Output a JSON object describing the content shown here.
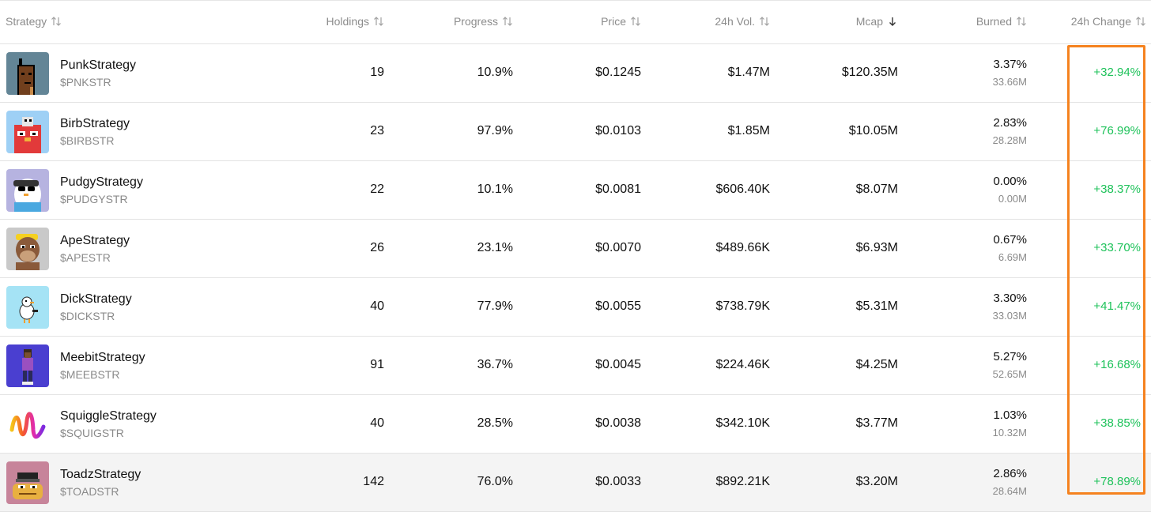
{
  "columns": {
    "strategy": "Strategy",
    "holdings": "Holdings",
    "progress": "Progress",
    "price": "Price",
    "vol": "24h Vol.",
    "mcap": "Mcap",
    "burned": "Burned",
    "change": "24h Change"
  },
  "colors": {
    "positive": "#1ec25a",
    "highlight": "#f5821f"
  },
  "rows": [
    {
      "name": "PunkStrategy",
      "ticker": "$PNKSTR",
      "holdings": "19",
      "progress": "10.9%",
      "price": "$0.1245",
      "vol": "$1.47M",
      "mcap": "$120.35M",
      "burned_pct": "3.37%",
      "burned_amt": "33.66M",
      "change": "+32.94%"
    },
    {
      "name": "BirbStrategy",
      "ticker": "$BIRBSTR",
      "holdings": "23",
      "progress": "97.9%",
      "price": "$0.0103",
      "vol": "$1.85M",
      "mcap": "$10.05M",
      "burned_pct": "2.83%",
      "burned_amt": "28.28M",
      "change": "+76.99%"
    },
    {
      "name": "PudgyStrategy",
      "ticker": "$PUDGYSTR",
      "holdings": "22",
      "progress": "10.1%",
      "price": "$0.0081",
      "vol": "$606.40K",
      "mcap": "$8.07M",
      "burned_pct": "0.00%",
      "burned_amt": "0.00M",
      "change": "+38.37%"
    },
    {
      "name": "ApeStrategy",
      "ticker": "$APESTR",
      "holdings": "26",
      "progress": "23.1%",
      "price": "$0.0070",
      "vol": "$489.66K",
      "mcap": "$6.93M",
      "burned_pct": "0.67%",
      "burned_amt": "6.69M",
      "change": "+33.70%"
    },
    {
      "name": "DickStrategy",
      "ticker": "$DICKSTR",
      "holdings": "40",
      "progress": "77.9%",
      "price": "$0.0055",
      "vol": "$738.79K",
      "mcap": "$5.31M",
      "burned_pct": "3.30%",
      "burned_amt": "33.03M",
      "change": "+41.47%"
    },
    {
      "name": "MeebitStrategy",
      "ticker": "$MEEBSTR",
      "holdings": "91",
      "progress": "36.7%",
      "price": "$0.0045",
      "vol": "$224.46K",
      "mcap": "$4.25M",
      "burned_pct": "5.27%",
      "burned_amt": "52.65M",
      "change": "+16.68%"
    },
    {
      "name": "SquiggleStrategy",
      "ticker": "$SQUIGSTR",
      "holdings": "40",
      "progress": "28.5%",
      "price": "$0.0038",
      "vol": "$342.10K",
      "mcap": "$3.77M",
      "burned_pct": "1.03%",
      "burned_amt": "10.32M",
      "change": "+38.85%"
    },
    {
      "name": "ToadzStrategy",
      "ticker": "$TOADSTR",
      "holdings": "142",
      "progress": "76.0%",
      "price": "$0.0033",
      "vol": "$892.21K",
      "mcap": "$3.20M",
      "burned_pct": "2.86%",
      "burned_amt": "28.64M",
      "change": "+78.89%"
    }
  ]
}
